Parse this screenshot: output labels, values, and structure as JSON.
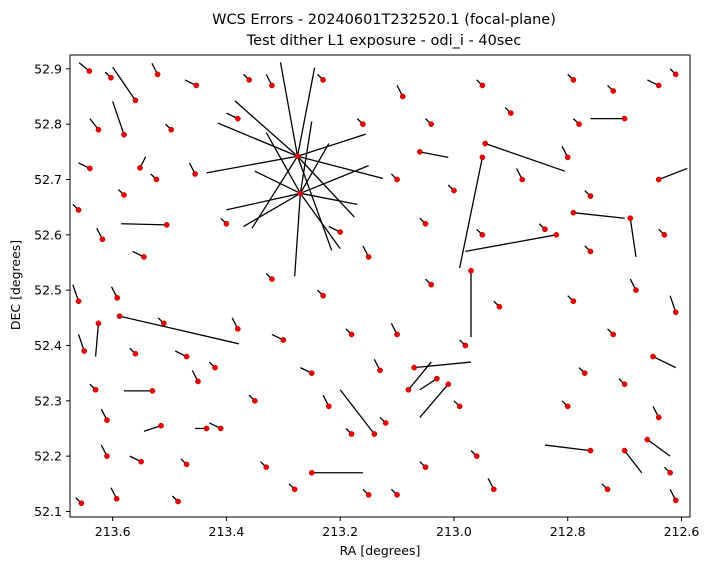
{
  "chart_data": {
    "type": "scatter",
    "title": "WCS Errors - 20240601T232520.1 (focal-plane)",
    "subtitle": "Test dither L1 exposure - odi_i - 40sec",
    "xlabel": "RA [degrees]",
    "ylabel": "DEC [degrees]",
    "xlim": [
      213.675,
      212.585
    ],
    "ylim": [
      52.09,
      52.925
    ],
    "x_inverted": true,
    "xticks": [
      213.6,
      213.4,
      213.2,
      213.0,
      212.8,
      212.6
    ],
    "xtick_labels": [
      "213.6",
      "213.4",
      "213.2",
      "213.0",
      "212.8",
      "212.6"
    ],
    "yticks": [
      52.1,
      52.2,
      52.3,
      52.4,
      52.5,
      52.6,
      52.7,
      52.8,
      52.9
    ],
    "ytick_labels": [
      "52.1",
      "52.2",
      "52.3",
      "52.4",
      "52.5",
      "52.6",
      "52.7",
      "52.8",
      "52.9"
    ],
    "grid": false,
    "legend": "none",
    "point_color": "#ee0000",
    "vector_color": "#000000",
    "marker": "filled circle",
    "point_count_approx": 900,
    "series": [
      {
        "values": [
          {
            "ra": 213.641,
            "dec": 52.896,
            "dra": 0.018,
            "ddec": 0.015
          },
          {
            "ra": 213.603,
            "dec": 52.884,
            "dra": 0.01,
            "ddec": 0.01
          },
          {
            "ra": 213.56,
            "dec": 52.843,
            "dra": 0.04,
            "ddec": 0.06
          },
          {
            "ra": 213.521,
            "dec": 52.89,
            "dra": 0.01,
            "ddec": 0.02
          },
          {
            "ra": 213.453,
            "dec": 52.87,
            "dra": 0.02,
            "ddec": 0.01
          },
          {
            "ra": 213.625,
            "dec": 52.79,
            "dra": 0.015,
            "ddec": 0.02
          },
          {
            "ra": 213.58,
            "dec": 52.781,
            "dra": 0.02,
            "ddec": 0.06
          },
          {
            "ra": 213.497,
            "dec": 52.79,
            "dra": 0.01,
            "ddec": 0.01
          },
          {
            "ra": 213.64,
            "dec": 52.72,
            "dra": 0.02,
            "ddec": 0.01
          },
          {
            "ra": 213.552,
            "dec": 52.721,
            "dra": -0.01,
            "ddec": 0.02
          },
          {
            "ra": 213.523,
            "dec": 52.7,
            "dra": 0.01,
            "ddec": 0.01
          },
          {
            "ra": 213.455,
            "dec": 52.71,
            "dra": 0.01,
            "ddec": 0.02
          },
          {
            "ra": 213.66,
            "dec": 52.645,
            "dra": 0.01,
            "ddec": 0.01
          },
          {
            "ra": 213.58,
            "dec": 52.672,
            "dra": 0.01,
            "ddec": 0.01
          },
          {
            "ra": 213.505,
            "dec": 52.618,
            "dra": 0.08,
            "ddec": 0.002
          },
          {
            "ra": 213.618,
            "dec": 52.592,
            "dra": 0.01,
            "ddec": 0.02
          },
          {
            "ra": 213.545,
            "dec": 52.56,
            "dra": 0.02,
            "ddec": 0.01
          },
          {
            "ra": 213.66,
            "dec": 52.48,
            "dra": 0.01,
            "ddec": 0.03
          },
          {
            "ra": 213.592,
            "dec": 52.486,
            "dra": 0.01,
            "ddec": 0.02
          },
          {
            "ra": 213.588,
            "dec": 52.453,
            "dra": -0.21,
            "ddec": -0.05
          },
          {
            "ra": 213.625,
            "dec": 52.44,
            "dra": 0.005,
            "ddec": -0.06
          },
          {
            "ra": 213.51,
            "dec": 52.44,
            "dra": 0.01,
            "ddec": 0.01
          },
          {
            "ra": 213.65,
            "dec": 52.39,
            "dra": 0.01,
            "ddec": 0.03
          },
          {
            "ra": 213.56,
            "dec": 52.385,
            "dra": 0.01,
            "ddec": 0.01
          },
          {
            "ra": 213.47,
            "dec": 52.38,
            "dra": 0.02,
            "ddec": 0.01
          },
          {
            "ra": 213.63,
            "dec": 52.32,
            "dra": 0.01,
            "ddec": 0.01
          },
          {
            "ra": 213.53,
            "dec": 52.318,
            "dra": 0.05,
            "ddec": 0.0
          },
          {
            "ra": 213.45,
            "dec": 52.335,
            "dra": 0.01,
            "ddec": 0.02
          },
          {
            "ra": 213.61,
            "dec": 52.265,
            "dra": 0.01,
            "ddec": 0.02
          },
          {
            "ra": 213.515,
            "dec": 52.255,
            "dra": 0.03,
            "ddec": -0.01
          },
          {
            "ra": 213.435,
            "dec": 52.25,
            "dra": 0.02,
            "ddec": 0.0
          },
          {
            "ra": 213.61,
            "dec": 52.2,
            "dra": 0.01,
            "ddec": 0.02
          },
          {
            "ra": 213.55,
            "dec": 52.19,
            "dra": 0.02,
            "ddec": 0.01
          },
          {
            "ra": 213.47,
            "dec": 52.185,
            "dra": 0.01,
            "ddec": 0.01
          },
          {
            "ra": 213.655,
            "dec": 52.115,
            "dra": 0.01,
            "ddec": 0.01
          },
          {
            "ra": 213.593,
            "dec": 52.123,
            "dra": 0.01,
            "ddec": 0.02
          },
          {
            "ra": 213.485,
            "dec": 52.118,
            "dra": 0.01,
            "ddec": 0.01
          },
          {
            "ra": 213.36,
            "dec": 52.88,
            "dra": 0.01,
            "ddec": 0.01
          },
          {
            "ra": 213.32,
            "dec": 52.87,
            "dra": 0.01,
            "ddec": 0.02
          },
          {
            "ra": 213.23,
            "dec": 52.88,
            "dra": 0.01,
            "ddec": 0.01
          },
          {
            "ra": 213.38,
            "dec": 52.81,
            "dra": 0.02,
            "ddec": 0.01
          },
          {
            "ra": 213.16,
            "dec": 52.8,
            "dra": 0.01,
            "ddec": 0.01
          },
          {
            "ra": 213.275,
            "dec": 52.742,
            "dra": 0.14,
            "ddec": 0.06
          },
          {
            "ra": 213.275,
            "dec": 52.742,
            "dra": -0.12,
            "ddec": 0.04
          },
          {
            "ra": 213.275,
            "dec": 52.742,
            "dra": 0.08,
            "ddec": -0.13
          },
          {
            "ra": 213.275,
            "dec": 52.742,
            "dra": -0.06,
            "ddec": -0.17
          },
          {
            "ra": 213.275,
            "dec": 52.742,
            "dra": 0.16,
            "ddec": -0.03
          },
          {
            "ra": 213.275,
            "dec": 52.742,
            "dra": -0.15,
            "ddec": -0.04
          },
          {
            "ra": 213.275,
            "dec": 52.742,
            "dra": 0.03,
            "ddec": 0.17
          },
          {
            "ra": 213.275,
            "dec": 52.742,
            "dra": -0.03,
            "ddec": 0.16
          },
          {
            "ra": 213.275,
            "dec": 52.742,
            "dra": 0.11,
            "ddec": 0.1
          },
          {
            "ra": 213.275,
            "dec": 52.742,
            "dra": -0.1,
            "ddec": -0.11
          },
          {
            "ra": 213.27,
            "dec": 52.675,
            "dra": 0.13,
            "ddec": -0.03
          },
          {
            "ra": 213.27,
            "dec": 52.675,
            "dra": -0.12,
            "ddec": 0.05
          },
          {
            "ra": 213.27,
            "dec": 52.675,
            "dra": 0.06,
            "ddec": 0.11
          },
          {
            "ra": 213.27,
            "dec": 52.675,
            "dra": -0.07,
            "ddec": -0.1
          },
          {
            "ra": 213.27,
            "dec": 52.675,
            "dra": 0.01,
            "ddec": -0.15
          },
          {
            "ra": 213.27,
            "dec": 52.675,
            "dra": -0.02,
            "ddec": 0.13
          },
          {
            "ra": 213.27,
            "dec": 52.675,
            "dra": 0.1,
            "ddec": -0.06
          },
          {
            "ra": 213.27,
            "dec": 52.675,
            "dra": -0.1,
            "ddec": -0.02
          },
          {
            "ra": 213.27,
            "dec": 52.675,
            "dra": 0.08,
            "ddec": 0.04
          },
          {
            "ra": 213.27,
            "dec": 52.675,
            "dra": -0.05,
            "ddec": 0.09
          },
          {
            "ra": 213.4,
            "dec": 52.62,
            "dra": 0.01,
            "ddec": 0.01
          },
          {
            "ra": 213.2,
            "dec": 52.605,
            "dra": 0.02,
            "ddec": 0.01
          },
          {
            "ra": 213.15,
            "dec": 52.56,
            "dra": 0.01,
            "ddec": 0.02
          },
          {
            "ra": 213.32,
            "dec": 52.52,
            "dra": 0.01,
            "ddec": 0.01
          },
          {
            "ra": 213.23,
            "dec": 52.49,
            "dra": 0.01,
            "ddec": 0.01
          },
          {
            "ra": 213.38,
            "dec": 52.43,
            "dra": 0.01,
            "ddec": 0.02
          },
          {
            "ra": 213.3,
            "dec": 52.41,
            "dra": 0.02,
            "ddec": 0.01
          },
          {
            "ra": 213.18,
            "dec": 52.42,
            "dra": 0.01,
            "ddec": 0.01
          },
          {
            "ra": 213.42,
            "dec": 52.36,
            "dra": 0.01,
            "ddec": 0.01
          },
          {
            "ra": 213.25,
            "dec": 52.35,
            "dra": 0.02,
            "ddec": 0.01
          },
          {
            "ra": 213.13,
            "dec": 52.355,
            "dra": 0.01,
            "ddec": 0.02
          },
          {
            "ra": 213.35,
            "dec": 52.3,
            "dra": 0.01,
            "ddec": 0.01
          },
          {
            "ra": 213.22,
            "dec": 52.29,
            "dra": 0.01,
            "ddec": 0.02
          },
          {
            "ra": 213.41,
            "dec": 52.25,
            "dra": 0.02,
            "ddec": 0.01
          },
          {
            "ra": 213.18,
            "dec": 52.24,
            "dra": 0.01,
            "ddec": 0.01
          },
          {
            "ra": 213.33,
            "dec": 52.18,
            "dra": 0.01,
            "ddec": 0.01
          },
          {
            "ra": 213.25,
            "dec": 52.17,
            "dra": -0.09,
            "ddec": 0.0
          },
          {
            "ra": 213.28,
            "dec": 52.14,
            "dra": 0.01,
            "ddec": 0.01
          },
          {
            "ra": 213.15,
            "dec": 52.13,
            "dra": 0.01,
            "ddec": 0.01
          },
          {
            "ra": 213.09,
            "dec": 52.85,
            "dra": 0.01,
            "ddec": 0.02
          },
          {
            "ra": 213.04,
            "dec": 52.8,
            "dra": 0.01,
            "ddec": 0.01
          },
          {
            "ra": 212.95,
            "dec": 52.87,
            "dra": 0.01,
            "ddec": 0.01
          },
          {
            "ra": 212.9,
            "dec": 52.82,
            "dra": 0.01,
            "ddec": 0.01
          },
          {
            "ra": 212.945,
            "dec": 52.765,
            "dra": -0.14,
            "ddec": -0.05
          },
          {
            "ra": 212.95,
            "dec": 52.74,
            "dra": 0.04,
            "ddec": -0.2
          },
          {
            "ra": 213.06,
            "dec": 52.75,
            "dra": -0.05,
            "ddec": -0.01
          },
          {
            "ra": 213.1,
            "dec": 52.7,
            "dra": 0.01,
            "ddec": 0.01
          },
          {
            "ra": 213.0,
            "dec": 52.68,
            "dra": 0.01,
            "ddec": 0.01
          },
          {
            "ra": 212.88,
            "dec": 52.7,
            "dra": 0.01,
            "ddec": 0.02
          },
          {
            "ra": 213.05,
            "dec": 52.62,
            "dra": 0.01,
            "ddec": 0.01
          },
          {
            "ra": 212.95,
            "dec": 52.6,
            "dra": 0.01,
            "ddec": 0.01
          },
          {
            "ra": 212.84,
            "dec": 52.61,
            "dra": 0.01,
            "ddec": 0.01
          },
          {
            "ra": 212.97,
            "dec": 52.535,
            "dra": 0.0,
            "ddec": -0.12
          },
          {
            "ra": 213.04,
            "dec": 52.51,
            "dra": 0.01,
            "ddec": 0.01
          },
          {
            "ra": 212.92,
            "dec": 52.47,
            "dra": 0.01,
            "ddec": 0.01
          },
          {
            "ra": 213.1,
            "dec": 52.42,
            "dra": 0.01,
            "ddec": 0.02
          },
          {
            "ra": 212.98,
            "dec": 52.4,
            "dra": 0.01,
            "ddec": 0.01
          },
          {
            "ra": 213.07,
            "dec": 52.36,
            "dra": -0.1,
            "ddec": 0.01
          },
          {
            "ra": 213.08,
            "dec": 52.32,
            "dra": -0.04,
            "ddec": 0.05
          },
          {
            "ra": 213.03,
            "dec": 52.34,
            "dra": 0.03,
            "ddec": -0.02
          },
          {
            "ra": 212.99,
            "dec": 52.29,
            "dra": 0.01,
            "ddec": 0.01
          },
          {
            "ra": 213.12,
            "dec": 52.26,
            "dra": 0.01,
            "ddec": 0.01
          },
          {
            "ra": 213.01,
            "dec": 52.33,
            "dra": 0.05,
            "ddec": -0.06
          },
          {
            "ra": 213.14,
            "dec": 52.24,
            "dra": 0.06,
            "ddec": 0.08
          },
          {
            "ra": 213.05,
            "dec": 52.18,
            "dra": 0.01,
            "ddec": 0.01
          },
          {
            "ra": 212.96,
            "dec": 52.2,
            "dra": 0.01,
            "ddec": 0.01
          },
          {
            "ra": 213.1,
            "dec": 52.13,
            "dra": 0.01,
            "ddec": 0.01
          },
          {
            "ra": 212.93,
            "dec": 52.14,
            "dra": 0.01,
            "ddec": 0.02
          },
          {
            "ra": 212.79,
            "dec": 52.88,
            "dra": 0.01,
            "ddec": 0.01
          },
          {
            "ra": 212.72,
            "dec": 52.86,
            "dra": 0.01,
            "ddec": 0.01
          },
          {
            "ra": 212.64,
            "dec": 52.87,
            "dra": 0.02,
            "ddec": 0.01
          },
          {
            "ra": 212.61,
            "dec": 52.89,
            "dra": 0.01,
            "ddec": 0.01
          },
          {
            "ra": 212.78,
            "dec": 52.8,
            "dra": 0.01,
            "ddec": 0.01
          },
          {
            "ra": 212.7,
            "dec": 52.81,
            "dra": 0.06,
            "ddec": 0.0
          },
          {
            "ra": 212.8,
            "dec": 52.74,
            "dra": 0.01,
            "ddec": 0.02
          },
          {
            "ra": 212.64,
            "dec": 52.7,
            "dra": -0.05,
            "ddec": 0.02
          },
          {
            "ra": 212.76,
            "dec": 52.67,
            "dra": 0.01,
            "ddec": 0.01
          },
          {
            "ra": 212.79,
            "dec": 52.64,
            "dra": -0.09,
            "ddec": -0.01
          },
          {
            "ra": 212.69,
            "dec": 52.63,
            "dra": -0.01,
            "ddec": -0.07
          },
          {
            "ra": 212.63,
            "dec": 52.6,
            "dra": 0.01,
            "ddec": 0.01
          },
          {
            "ra": 212.76,
            "dec": 52.57,
            "dra": 0.01,
            "ddec": 0.01
          },
          {
            "ra": 212.82,
            "dec": 52.6,
            "dra": 0.16,
            "ddec": -0.03
          },
          {
            "ra": 212.68,
            "dec": 52.5,
            "dra": 0.01,
            "ddec": 0.02
          },
          {
            "ra": 212.79,
            "dec": 52.48,
            "dra": 0.01,
            "ddec": 0.01
          },
          {
            "ra": 212.61,
            "dec": 52.46,
            "dra": 0.01,
            "ddec": 0.03
          },
          {
            "ra": 212.72,
            "dec": 52.42,
            "dra": 0.01,
            "ddec": 0.01
          },
          {
            "ra": 212.65,
            "dec": 52.38,
            "dra": -0.04,
            "ddec": -0.02
          },
          {
            "ra": 212.77,
            "dec": 52.35,
            "dra": 0.01,
            "ddec": 0.01
          },
          {
            "ra": 212.7,
            "dec": 52.33,
            "dra": 0.01,
            "ddec": 0.01
          },
          {
            "ra": 212.8,
            "dec": 52.29,
            "dra": 0.01,
            "ddec": 0.01
          },
          {
            "ra": 212.64,
            "dec": 52.27,
            "dra": 0.01,
            "ddec": 0.02
          },
          {
            "ra": 212.76,
            "dec": 52.21,
            "dra": 0.08,
            "ddec": 0.01
          },
          {
            "ra": 212.7,
            "dec": 52.21,
            "dra": -0.03,
            "ddec": -0.04
          },
          {
            "ra": 212.66,
            "dec": 52.23,
            "dra": -0.04,
            "ddec": -0.03
          },
          {
            "ra": 212.62,
            "dec": 52.17,
            "dra": 0.01,
            "ddec": 0.01
          },
          {
            "ra": 212.73,
            "dec": 52.14,
            "dra": 0.01,
            "ddec": 0.01
          },
          {
            "ra": 212.61,
            "dec": 52.12,
            "dra": 0.01,
            "ddec": 0.02
          }
        ]
      }
    ]
  }
}
